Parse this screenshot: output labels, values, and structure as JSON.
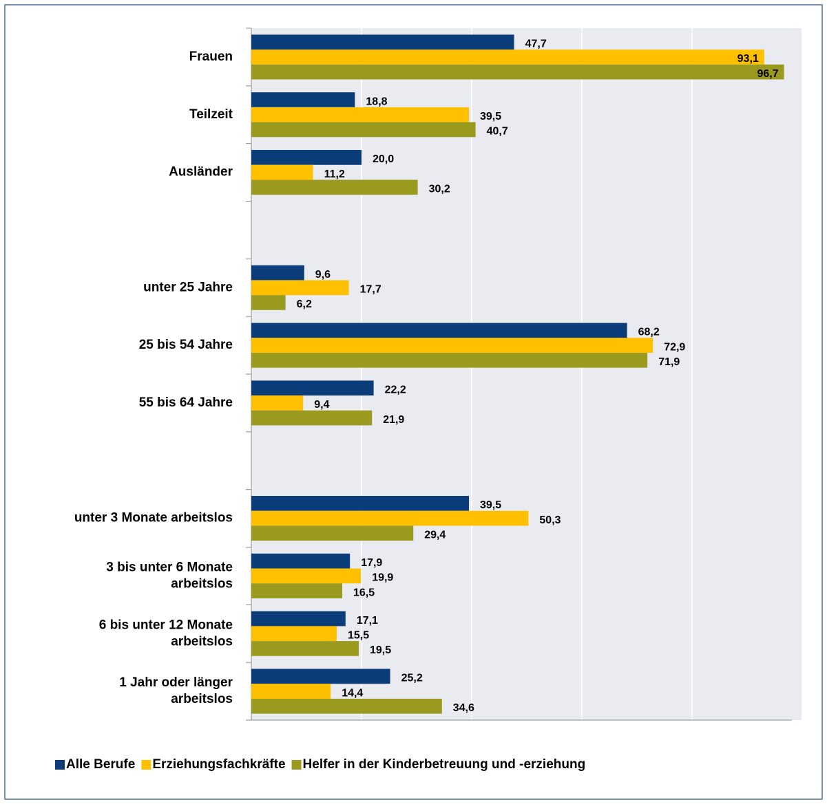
{
  "chart_data": {
    "type": "hbar",
    "categories": [
      "Frauen",
      "Teilzeit",
      "Ausländer",
      null,
      "unter 25 Jahre",
      "25 bis 54 Jahre",
      "55 bis 64 Jahre",
      null,
      "unter 3 Monate arbeitslos",
      "3 bis unter 6 Monate\narbeitslos",
      "6 bis unter 12 Monate\narbeitslos",
      "1 Jahr oder länger\narbeitslos"
    ],
    "series": [
      {
        "name": "Alle Berufe",
        "color": "#0b3d7a",
        "values": [
          47.7,
          18.8,
          20.0,
          null,
          9.6,
          68.2,
          22.2,
          null,
          39.5,
          17.9,
          17.1,
          25.2
        ],
        "value_labels": [
          "47,7",
          "18,8",
          "20,0",
          null,
          "9,6",
          "68,2",
          "22,2",
          null,
          "39,5",
          "17,9",
          "17,1",
          "25,2"
        ]
      },
      {
        "name": "Erziehungsfachkräfte",
        "color": "#ffc000",
        "values": [
          93.1,
          39.5,
          11.2,
          null,
          17.7,
          72.9,
          9.4,
          null,
          50.3,
          19.9,
          15.5,
          14.4
        ],
        "value_labels": [
          "93,1",
          "39,5",
          "11,2",
          null,
          "17,7",
          "72,9",
          "9,4",
          null,
          "50,3",
          "19,9",
          "15,5",
          "14,4"
        ]
      },
      {
        "name": "Helfer in der Kinderbetreuung und -erziehung",
        "color": "#9a9a1f",
        "values": [
          96.7,
          40.7,
          30.2,
          null,
          6.2,
          71.9,
          21.9,
          null,
          29.4,
          16.5,
          19.5,
          34.6
        ],
        "value_labels": [
          "96,7",
          "40,7",
          "30,2",
          null,
          "6,2",
          "71,9",
          "21,9",
          null,
          "29,4",
          "16,5",
          "19,5",
          "34,6"
        ]
      }
    ],
    "xlim": [
      0,
      100
    ],
    "xticks": [
      0,
      20,
      40,
      60,
      80,
      100
    ],
    "grid": true,
    "legend": "bottom"
  }
}
